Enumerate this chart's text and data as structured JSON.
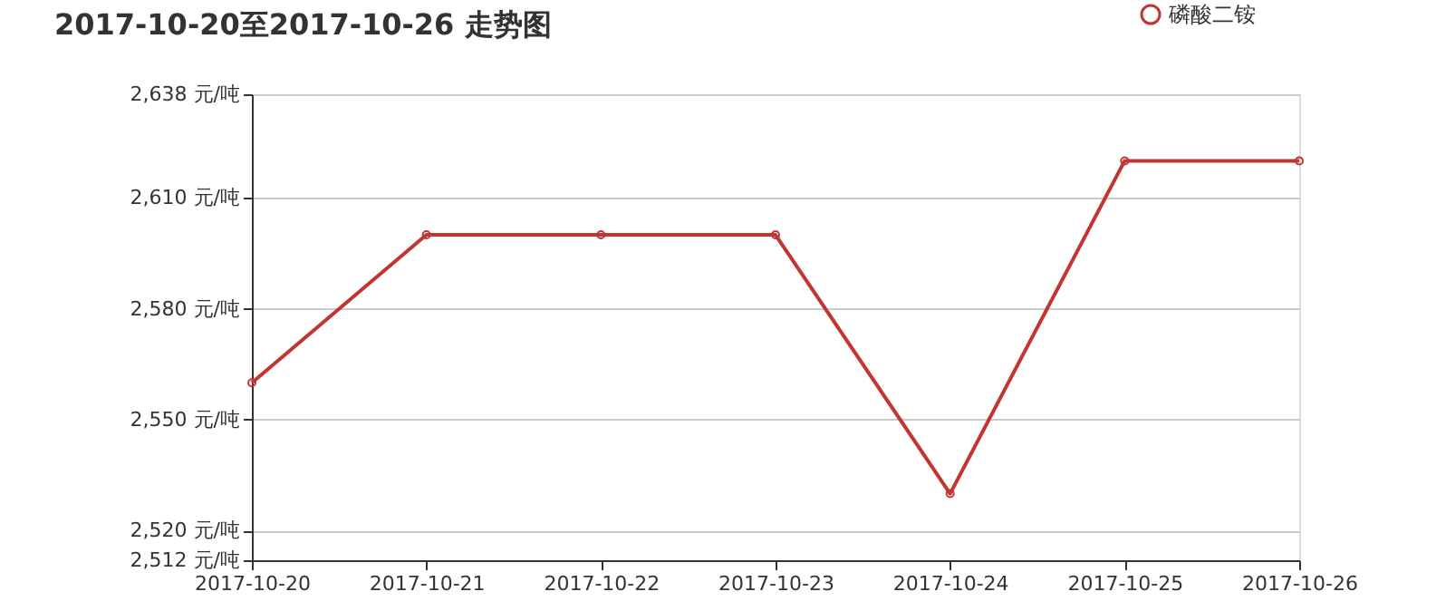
{
  "chart_data": {
    "type": "line",
    "title": "2017-10-20至2017-10-26 走势图",
    "categories": [
      "2017-10-20",
      "2017-10-21",
      "2017-10-22",
      "2017-10-23",
      "2017-10-24",
      "2017-10-25",
      "2017-10-26"
    ],
    "series": [
      {
        "name": "磷酸二铵",
        "color": "#c23531",
        "values": [
          2560,
          2600,
          2600,
          2600,
          2530,
          2620,
          2620
        ]
      }
    ],
    "ylim": [
      2512,
      2638
    ],
    "yticks": [
      {
        "value": 2512,
        "label": "2,512 元/吨"
      },
      {
        "value": 2520,
        "label": "2,520 元/吨"
      },
      {
        "value": 2550,
        "label": "2,550 元/吨"
      },
      {
        "value": 2580,
        "label": "2,580 元/吨"
      },
      {
        "value": 2610,
        "label": "2,610 元/吨"
      },
      {
        "value": 2638,
        "label": "2,638 元/吨"
      }
    ],
    "grid": "y",
    "legend": "top right",
    "marker": "circle",
    "line_style": "solid"
  }
}
